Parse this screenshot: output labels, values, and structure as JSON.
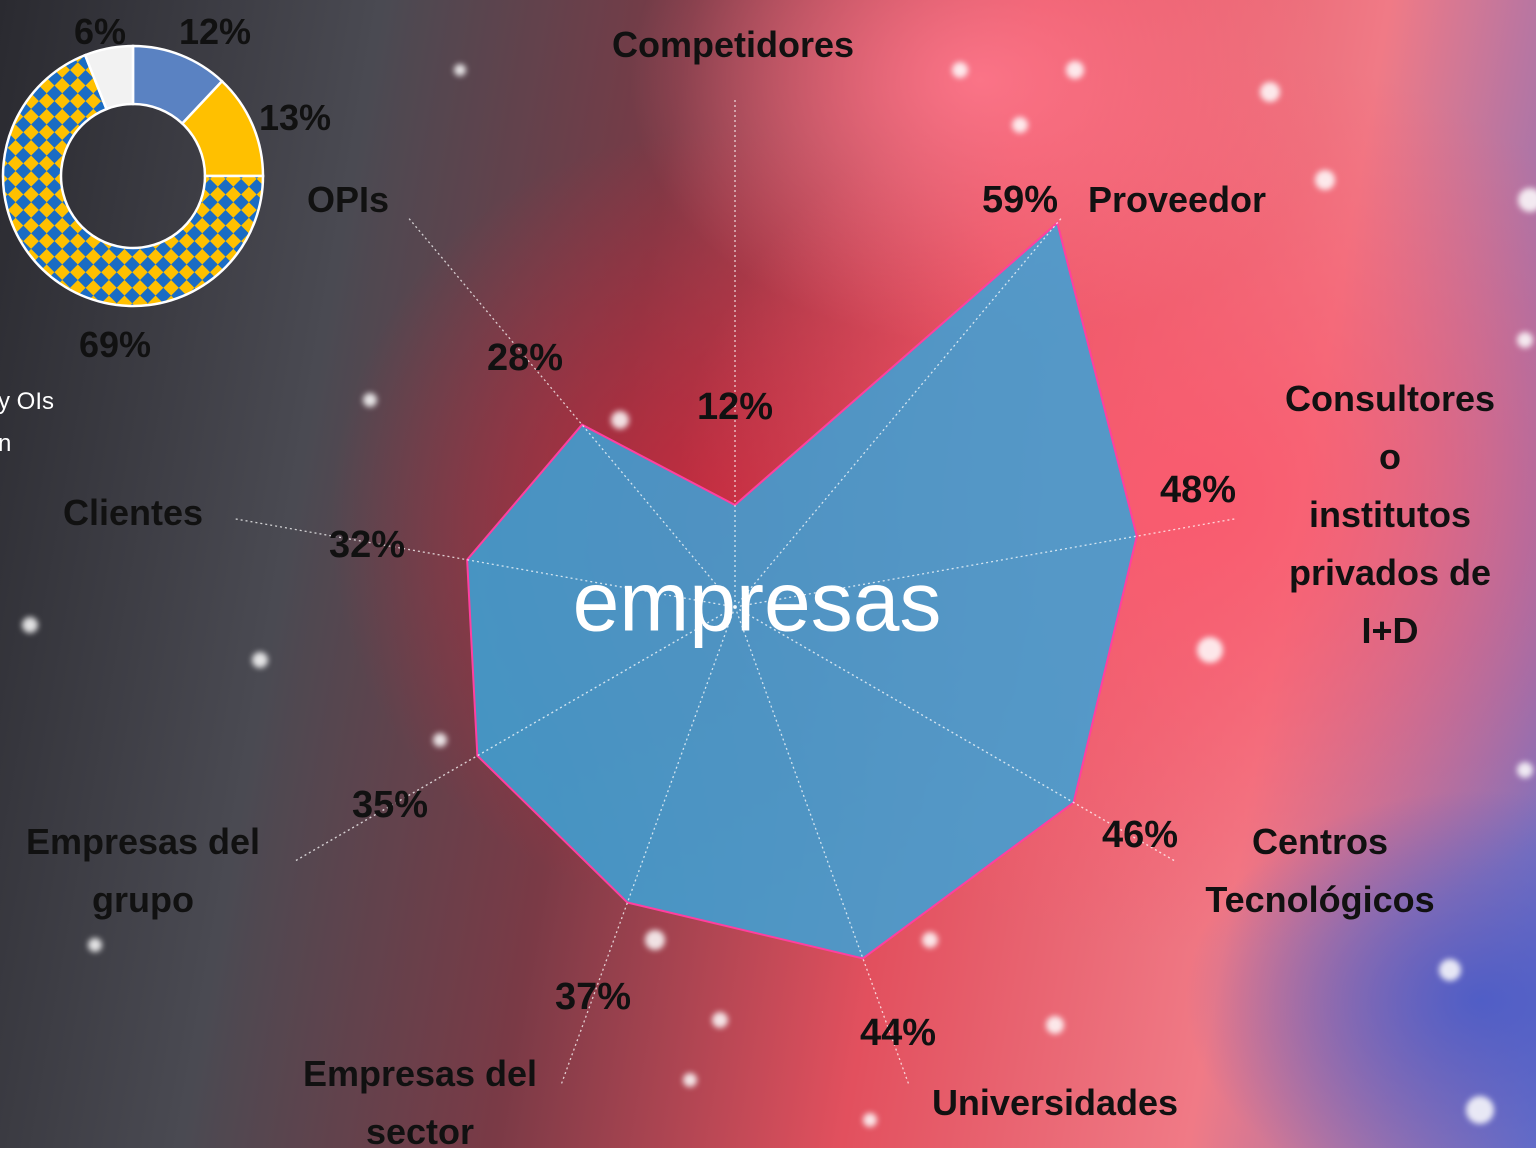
{
  "chart_data": [
    {
      "type": "radar",
      "center_label": "empresas",
      "categories": [
        "Competidores",
        "Proveedor",
        "Consultores o\ninstitutos\nprivados de\nI+D",
        "Centros\nTecnológicos",
        "Universidades",
        "Empresas del\nsector",
        "Empresas del\ngrupo",
        "Clientes",
        "OPIs"
      ],
      "values": [
        12,
        59,
        48,
        46,
        44,
        37,
        35,
        32,
        28
      ],
      "value_labels": [
        "12%",
        "59%",
        "48%",
        "46%",
        "44%",
        "37%",
        "35%",
        "32%",
        "28%"
      ],
      "rlim": [
        0,
        60
      ],
      "color": "#3fa0d4",
      "edge_color": "#ff3fa0"
    },
    {
      "type": "donut",
      "values": [
        12,
        13,
        69,
        6
      ],
      "value_labels": [
        "12%",
        "13%",
        "69%",
        "6%"
      ],
      "colors": [
        "#5a82c2",
        "#ffc000",
        "#1a6cc4",
        "#f2f2f2"
      ],
      "patterned": [
        false,
        false,
        true,
        false
      ],
      "pattern_color": "#ffc000",
      "caption": [
        "y OIs",
        "n"
      ]
    }
  ]
}
